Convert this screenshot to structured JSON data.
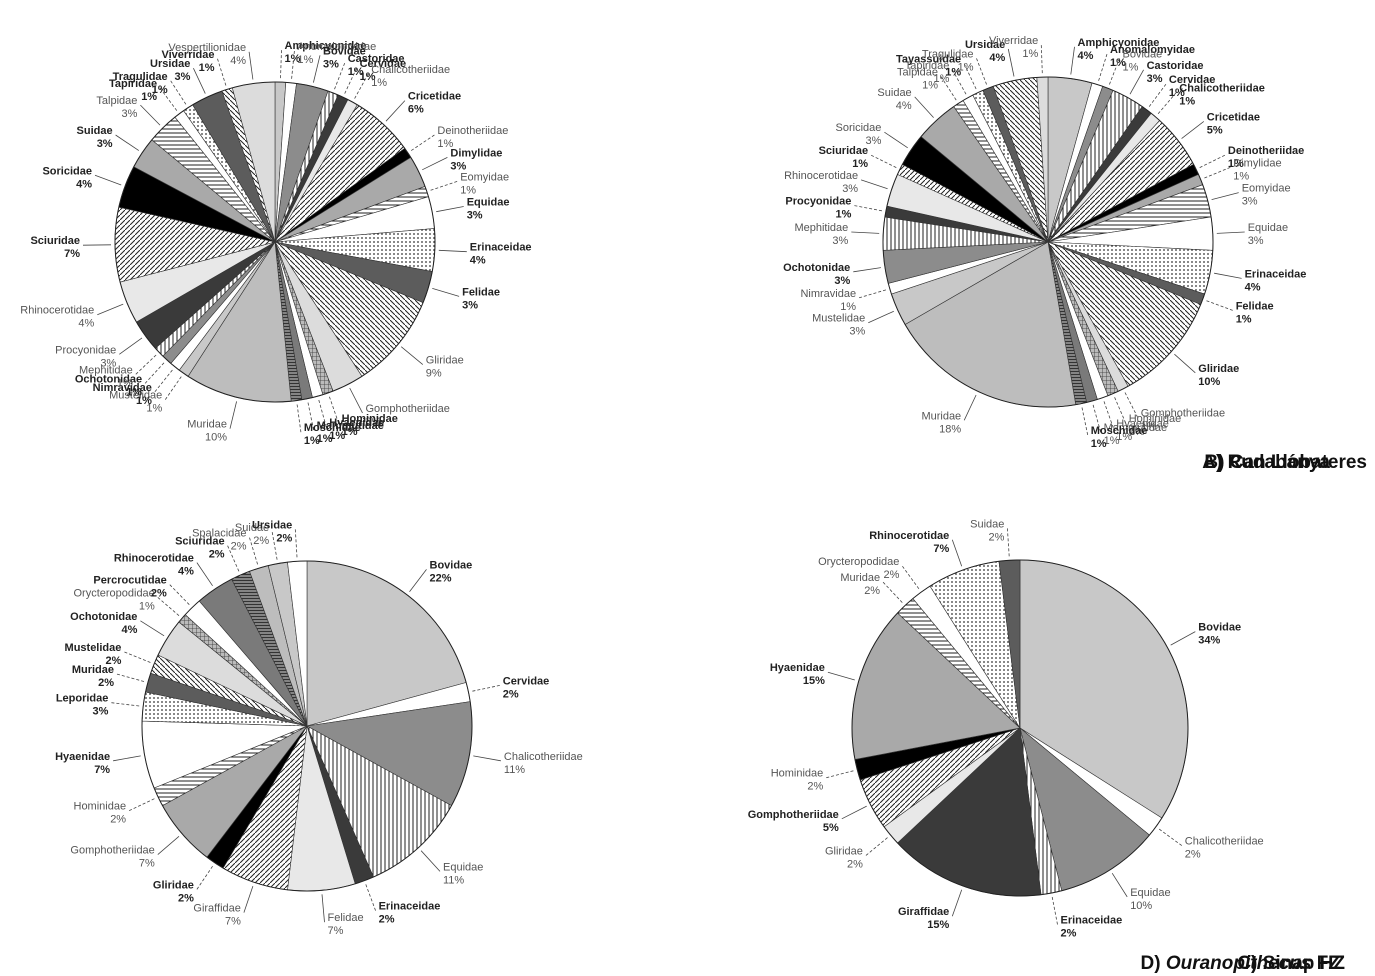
{
  "chart_data": [
    {
      "type": "pie",
      "title": "A) Rudabánya",
      "start_category": "Amphicyonidae",
      "categories": [
        "Amphicyonidae",
        "Anomalomyidae",
        "Bovidae",
        "Castoridae",
        "Cervidae",
        "Chalicotheriidae",
        "Cricetidae",
        "Deinotheriidae",
        "Dimylidae",
        "Eomyidae",
        "Equidae",
        "Erinaceidae",
        "Felidae",
        "Gliridae",
        "Gomphotheriidae",
        "Hominidae",
        "Hyaenidae",
        "Mammutidae",
        "Moschidae",
        "Muridae",
        "Mustelidae",
        "Nimravidae",
        "Ochotonidae",
        "Mephitidae",
        "Procyonidae",
        "Rhinocerotidae",
        "Sciuridae",
        "Soricidae",
        "Suidae",
        "Talpidae",
        "Tapiridae",
        "Tragulidae",
        "Ursidae",
        "Viverridae",
        "Vespertilionidae"
      ],
      "values": [
        1,
        1,
        3,
        1,
        1,
        1,
        6,
        1,
        3,
        1,
        3,
        4,
        3,
        9,
        3,
        1,
        1,
        1,
        1,
        10,
        1,
        1,
        1,
        1,
        3,
        4,
        7,
        4,
        3,
        3,
        1,
        1,
        3,
        1,
        4
      ],
      "value_labels": [
        "1%",
        "1%",
        "3%",
        "1%",
        "1%",
        "1%",
        "6%",
        "1%",
        "3%",
        "1%",
        "3%",
        "4%",
        "3%",
        "9%",
        "3%",
        "1%",
        "1%",
        "1%",
        "1%",
        "10%",
        "1%",
        "1%",
        "1%",
        "1%",
        "3%",
        "4%",
        "7%",
        "4%",
        "3%",
        "3%",
        "1%",
        "1%",
        "3%",
        "1%",
        "4%"
      ],
      "bold_labels": [
        "Amphicyonidae",
        "Bovidae",
        "Castoridae",
        "Cervidae",
        "Cricetidae",
        "Dimylidae",
        "Equidae",
        "Erinaceidae",
        "Felidae",
        "Hominidae",
        "Hyaenidae",
        "Mammutidae",
        "Moschidae",
        "Nimravidae",
        "Ochotonidae",
        "Sciuridae",
        "Soricidae",
        "Suidae",
        "Tapiridae",
        "Tragulidae",
        "Ursidae",
        "Viverridae"
      ]
    },
    {
      "type": "pie",
      "title": "B) Can Llobateres",
      "start_category": "Amphicyonidae",
      "categories": [
        "Amphicyonidae",
        "Anomalomyidae",
        "Bovidae",
        "Castoridae",
        "Cervidae",
        "Chalicotheriidae",
        "Cricetidae",
        "Deinotheriidae",
        "Dimylidae",
        "Eomyidae",
        "Equidae",
        "Erinaceidae",
        "Felidae",
        "Gliridae",
        "Gomphotheriidae",
        "Hominidae",
        "Hyaenidae",
        "Mammutidae",
        "Moschidae",
        "Muridae",
        "Mustelidae",
        "Nimravidae",
        "Ochotonidae",
        "Mephitidae",
        "Procyonidae",
        "Rhinocerotidae",
        "Sciuridae",
        "Soricidae",
        "Suidae",
        "Talpidae",
        "Tapiridae",
        "Tayassuidae",
        "Tragulidae",
        "Ursidae",
        "Viverridae"
      ],
      "values": [
        4,
        1,
        1,
        3,
        1,
        1,
        5,
        1,
        1,
        3,
        3,
        4,
        1,
        10,
        1,
        1,
        1,
        1,
        1,
        18,
        3,
        1,
        3,
        3,
        1,
        3,
        1,
        3,
        4,
        1,
        1,
        1,
        1,
        4,
        1
      ],
      "value_labels": [
        "4%",
        "1%",
        "1%",
        "3%",
        "1%",
        "1%",
        "5%",
        "1%",
        "1%",
        "3%",
        "3%",
        "4%",
        "1%",
        "10%",
        "1%",
        "1%",
        "1%",
        "1%",
        "1%",
        "18%",
        "3%",
        "1%",
        "3%",
        "3%",
        "1%",
        "3%",
        "1%",
        "3%",
        "4%",
        "1%",
        "1%",
        "1%",
        "1%",
        "4%",
        "1%"
      ],
      "bold_labels": [
        "Amphicyonidae",
        "Anomalomyidae",
        "Castoridae",
        "Cervidae",
        "Chalicotheriidae",
        "Cricetidae",
        "Deinotheriidae",
        "Erinaceidae",
        "Felidae",
        "Gliridae",
        "Moschidae",
        "Ochotonidae",
        "Procyonidae",
        "Sciuridae",
        "Tayassuidae",
        "Ursidae"
      ]
    },
    {
      "type": "pie",
      "title": "C) Sinap HZ",
      "start_category": "Bovidae",
      "categories": [
        "Bovidae",
        "Cervidae",
        "Chalicotheriidae",
        "Equidae",
        "Erinaceidae",
        "Felidae",
        "Giraffidae",
        "Gliridae",
        "Gomphotheriidae",
        "Hominidae",
        "Hyaenidae",
        "Leporidae",
        "Muridae",
        "Mustelidae",
        "Ochotonidae",
        "Orycteropodidae",
        "Percrocutidae",
        "Rhinocerotidae",
        "Sciuridae",
        "Spalacidae",
        "Suidae",
        "Ursidae"
      ],
      "values": [
        22,
        2,
        11,
        11,
        2,
        7,
        7,
        2,
        7,
        2,
        7,
        3,
        2,
        2,
        4,
        1,
        2,
        4,
        2,
        2,
        2,
        2
      ],
      "value_labels": [
        "22%",
        "2%",
        "11%",
        "11%",
        "2%",
        "7%",
        "7%",
        "2%",
        "7%",
        "2%",
        "7%",
        "3%",
        "2%",
        "2%",
        "4%",
        "1%",
        "2%",
        "4%",
        "2%",
        "2%",
        "2%",
        "2%"
      ],
      "bold_labels": [
        "Bovidae",
        "Cervidae",
        "Erinaceidae",
        "Gliridae",
        "Hyaenidae",
        "Leporidae",
        "Muridae",
        "Mustelidae",
        "Ochotonidae",
        "Percrocutidae",
        "Rhinocerotidae",
        "Sciuridae",
        "Ursidae"
      ]
    },
    {
      "type": "pie",
      "title": "D) Ouranopithecus FZ",
      "start_category": "Bovidae",
      "categories": [
        "Bovidae",
        "Chalicotheriidae",
        "Equidae",
        "Erinaceidae",
        "Giraffidae",
        "Gliridae",
        "Gomphotheriidae",
        "Hominidae",
        "Hyaenidae",
        "Muridae",
        "Orycteropodidae",
        "Rhinocerotidae",
        "Suidae"
      ],
      "values": [
        34,
        2,
        10,
        2,
        15,
        2,
        5,
        2,
        15,
        2,
        2,
        7,
        2
      ],
      "value_labels": [
        "34%",
        "2%",
        "10%",
        "2%",
        "15%",
        "2%",
        "5%",
        "2%",
        "15%",
        "2%",
        "2%",
        "7%",
        "2%"
      ],
      "bold_labels": [
        "Bovidae",
        "Erinaceidae",
        "Giraffidae",
        "Gomphotheriidae",
        "Hyaenidae",
        "Rhinocerotidae"
      ]
    }
  ],
  "captions": {
    "a": "A) Rudabánya",
    "b": "B) Can Llobateres",
    "c": "C) Sinap HZ",
    "d_prefix": "D) ",
    "d_italic": "Ouranopithecus",
    "d_suffix": " FZ"
  }
}
